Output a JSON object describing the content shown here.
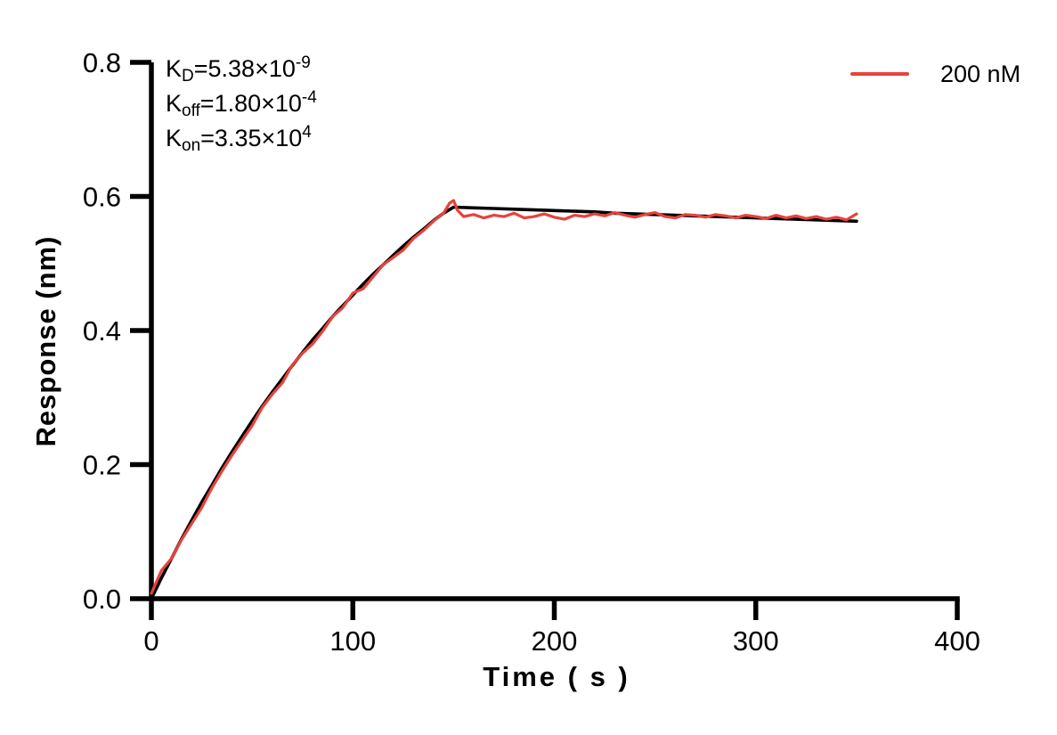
{
  "chart_data": {
    "type": "line",
    "title": "",
    "xlabel": "Time ( s )",
    "ylabel": "Response (nm)",
    "xlim": [
      0,
      400
    ],
    "ylim": [
      0,
      0.8
    ],
    "grid": false,
    "legend_position": "top-right",
    "x_ticks": [
      0,
      100,
      200,
      300,
      400
    ],
    "x_tick_labels": [
      "0",
      "100",
      "200",
      "300",
      "400"
    ],
    "y_ticks": [
      0,
      0.2,
      0.4,
      0.6,
      0.8
    ],
    "y_tick_labels": [
      "0.0",
      "0.2",
      "0.4",
      "0.6",
      "0.8"
    ],
    "axis_color": "#000000",
    "annotations": [
      {
        "pre": "K",
        "sub": "D",
        "mid": "=5.38×10",
        "sup": "-9"
      },
      {
        "pre": "K",
        "sub": "off",
        "mid": "=1.80×10",
        "sup": "-4"
      },
      {
        "pre": "K",
        "sub": "on",
        "mid": "=3.35×10",
        "sup": "4"
      }
    ],
    "legend": [
      {
        "label": "200 nM",
        "color": "#e8423c"
      }
    ],
    "series": [
      {
        "name": "fit-curve",
        "color": "#000000",
        "width": 3.6,
        "x": [
          0,
          5,
          10,
          15,
          20,
          25,
          30,
          35,
          40,
          45,
          50,
          55,
          60,
          65,
          70,
          75,
          80,
          85,
          90,
          95,
          100,
          105,
          110,
          115,
          120,
          125,
          130,
          135,
          140,
          145,
          150,
          160,
          170,
          180,
          190,
          200,
          210,
          220,
          230,
          240,
          250,
          260,
          270,
          280,
          290,
          300,
          310,
          320,
          330,
          340,
          350
        ],
        "y": [
          0,
          0.031,
          0.06,
          0.089,
          0.117,
          0.144,
          0.169,
          0.195,
          0.219,
          0.242,
          0.265,
          0.287,
          0.308,
          0.328,
          0.348,
          0.367,
          0.386,
          0.403,
          0.421,
          0.437,
          0.453,
          0.469,
          0.484,
          0.498,
          0.512,
          0.526,
          0.539,
          0.551,
          0.564,
          0.575,
          0.584,
          0.583,
          0.582,
          0.581,
          0.58,
          0.579,
          0.578,
          0.577,
          0.575,
          0.574,
          0.573,
          0.572,
          0.571,
          0.57,
          0.569,
          0.568,
          0.567,
          0.566,
          0.565,
          0.564,
          0.563
        ]
      },
      {
        "name": "measured-200nM",
        "color": "#e8423c",
        "width": 3.2,
        "x": [
          0,
          5,
          10,
          15,
          20,
          25,
          30,
          35,
          40,
          45,
          50,
          55,
          60,
          65,
          70,
          75,
          80,
          85,
          90,
          95,
          100,
          105,
          110,
          115,
          120,
          125,
          130,
          135,
          140,
          145,
          148,
          150,
          152,
          155,
          160,
          165,
          170,
          175,
          180,
          185,
          190,
          195,
          200,
          205,
          210,
          215,
          220,
          225,
          230,
          235,
          240,
          245,
          250,
          255,
          260,
          265,
          270,
          275,
          280,
          285,
          290,
          295,
          300,
          305,
          310,
          315,
          320,
          325,
          330,
          335,
          340,
          345,
          350
        ],
        "y": [
          0.008,
          0.042,
          0.06,
          0.088,
          0.112,
          0.136,
          0.165,
          0.19,
          0.214,
          0.236,
          0.258,
          0.285,
          0.305,
          0.322,
          0.349,
          0.366,
          0.38,
          0.399,
          0.421,
          0.434,
          0.456,
          0.462,
          0.48,
          0.498,
          0.509,
          0.52,
          0.537,
          0.549,
          0.563,
          0.575,
          0.59,
          0.594,
          0.579,
          0.57,
          0.573,
          0.568,
          0.572,
          0.57,
          0.575,
          0.568,
          0.57,
          0.574,
          0.569,
          0.566,
          0.572,
          0.57,
          0.574,
          0.571,
          0.576,
          0.572,
          0.569,
          0.573,
          0.576,
          0.57,
          0.568,
          0.573,
          0.572,
          0.569,
          0.573,
          0.571,
          0.568,
          0.572,
          0.57,
          0.567,
          0.572,
          0.568,
          0.571,
          0.567,
          0.57,
          0.566,
          0.569,
          0.565,
          0.574
        ]
      }
    ]
  }
}
